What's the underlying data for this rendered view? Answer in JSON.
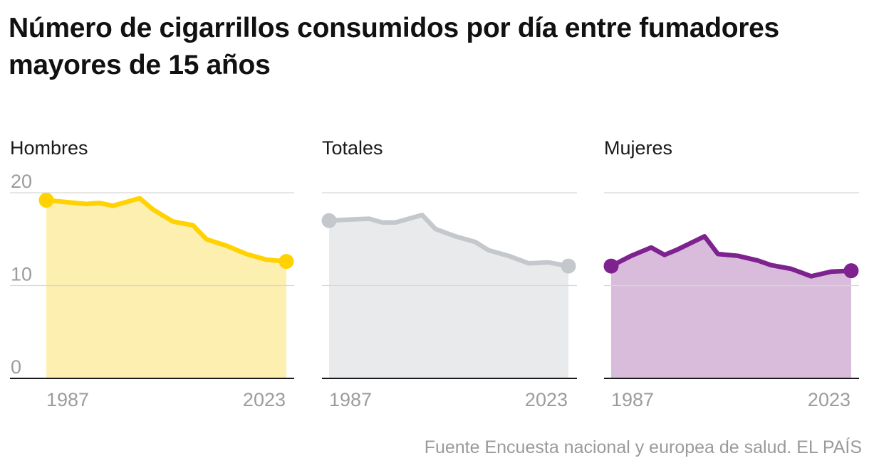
{
  "title": "Número de cigarrillos consumidos por día entre fumadores mayores de 15 años",
  "source": "Fuente Encuesta nacional y europea de salud. EL PAÍS",
  "chart_data": {
    "type": "area",
    "x": [
      1987,
      1990,
      1993,
      1995,
      1997,
      2001,
      2003,
      2006,
      2009,
      2011,
      2014,
      2017,
      2020,
      2023
    ],
    "ylim": [
      0,
      20
    ],
    "yticks": [
      {
        "value": 0,
        "label": "0"
      },
      {
        "value": 10,
        "label": "10"
      },
      {
        "value": 20,
        "label": "20"
      }
    ],
    "xticks": [
      {
        "value": 1987,
        "label": "1987"
      },
      {
        "value": 2023,
        "label": "2023"
      }
    ],
    "grid": true,
    "series": [
      {
        "name": "Hombres",
        "line_color": "#ffd200",
        "fill_color": "#fcefb0",
        "values": [
          19.2,
          19.0,
          18.8,
          18.9,
          18.6,
          19.4,
          18.2,
          16.9,
          16.5,
          15.0,
          14.3,
          13.4,
          12.8,
          12.6
        ]
      },
      {
        "name": "Totales",
        "line_color": "#c4c8cc",
        "fill_color": "#e9eaec",
        "values": [
          17.0,
          17.1,
          17.2,
          16.8,
          16.8,
          17.6,
          16.1,
          15.3,
          14.7,
          13.8,
          13.2,
          12.4,
          12.5,
          12.1
        ]
      },
      {
        "name": "Mujeres",
        "line_color": "#7e2290",
        "fill_color": "#d9bcdb",
        "values": [
          12.1,
          13.2,
          14.1,
          13.3,
          13.9,
          15.3,
          13.4,
          13.2,
          12.7,
          12.2,
          11.8,
          11.0,
          11.5,
          11.6
        ]
      }
    ]
  }
}
